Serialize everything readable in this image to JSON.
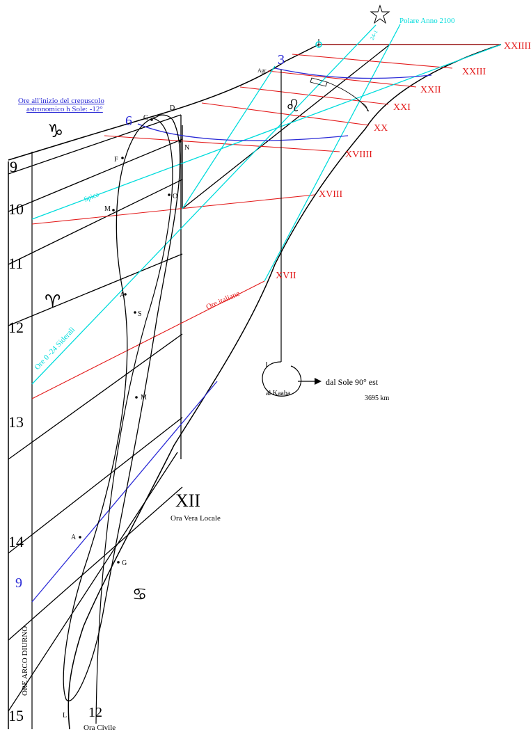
{
  "colors": {
    "hour_lines": "#000000",
    "italian_hours": "#e31a1a",
    "sidereal_hours": "#00dcdc",
    "twilight_hours": "#2a2ad6"
  },
  "labels": {
    "polaris": "Polare Anno 2100",
    "polaris_small": "24-1",
    "twilight_line1": "Ore  all'inizio del crepuscolo",
    "twilight_line2": "astronomico h Sole: -12°",
    "spica": "Spica",
    "altair": "Agr",
    "sidereal": "Ore 0 -24 Siderali",
    "italian": "Ore italiane",
    "kaaba_dir": "dal  Sole 90° est",
    "kaaba_dist": "3695 km",
    "kaaba": "al Kaaba",
    "solar_noon_numeral": "XII",
    "solar_noon_label": "Ora Vera Locale",
    "civil_noon_numeral": "12",
    "civil_noon_label": "Ora Civile",
    "diurnal_arc": "ORE  ARCO DIURNO"
  },
  "zodiac": {
    "capricorn": "♑",
    "aries": "♈",
    "leo": "♌",
    "cancer": "♋"
  },
  "twilight_hours": [
    "3",
    "6",
    "9"
  ],
  "diurnal_hours": [
    "9",
    "10",
    "11",
    "12",
    "13",
    "14",
    "15"
  ],
  "italian_hours": [
    "XVII",
    "XVIII",
    "XVIIII",
    "XX",
    "XXI",
    "XXII",
    "XXIII",
    "XXIIII"
  ],
  "analemma_months": {
    "G_top": "G",
    "D": "D",
    "N": "N",
    "F": "F",
    "O": "O",
    "M_top": "M",
    "A_top": "A",
    "S": "S",
    "M_bottom": "M",
    "A_bottom": "A",
    "G_bottom": "G",
    "L": "L"
  }
}
